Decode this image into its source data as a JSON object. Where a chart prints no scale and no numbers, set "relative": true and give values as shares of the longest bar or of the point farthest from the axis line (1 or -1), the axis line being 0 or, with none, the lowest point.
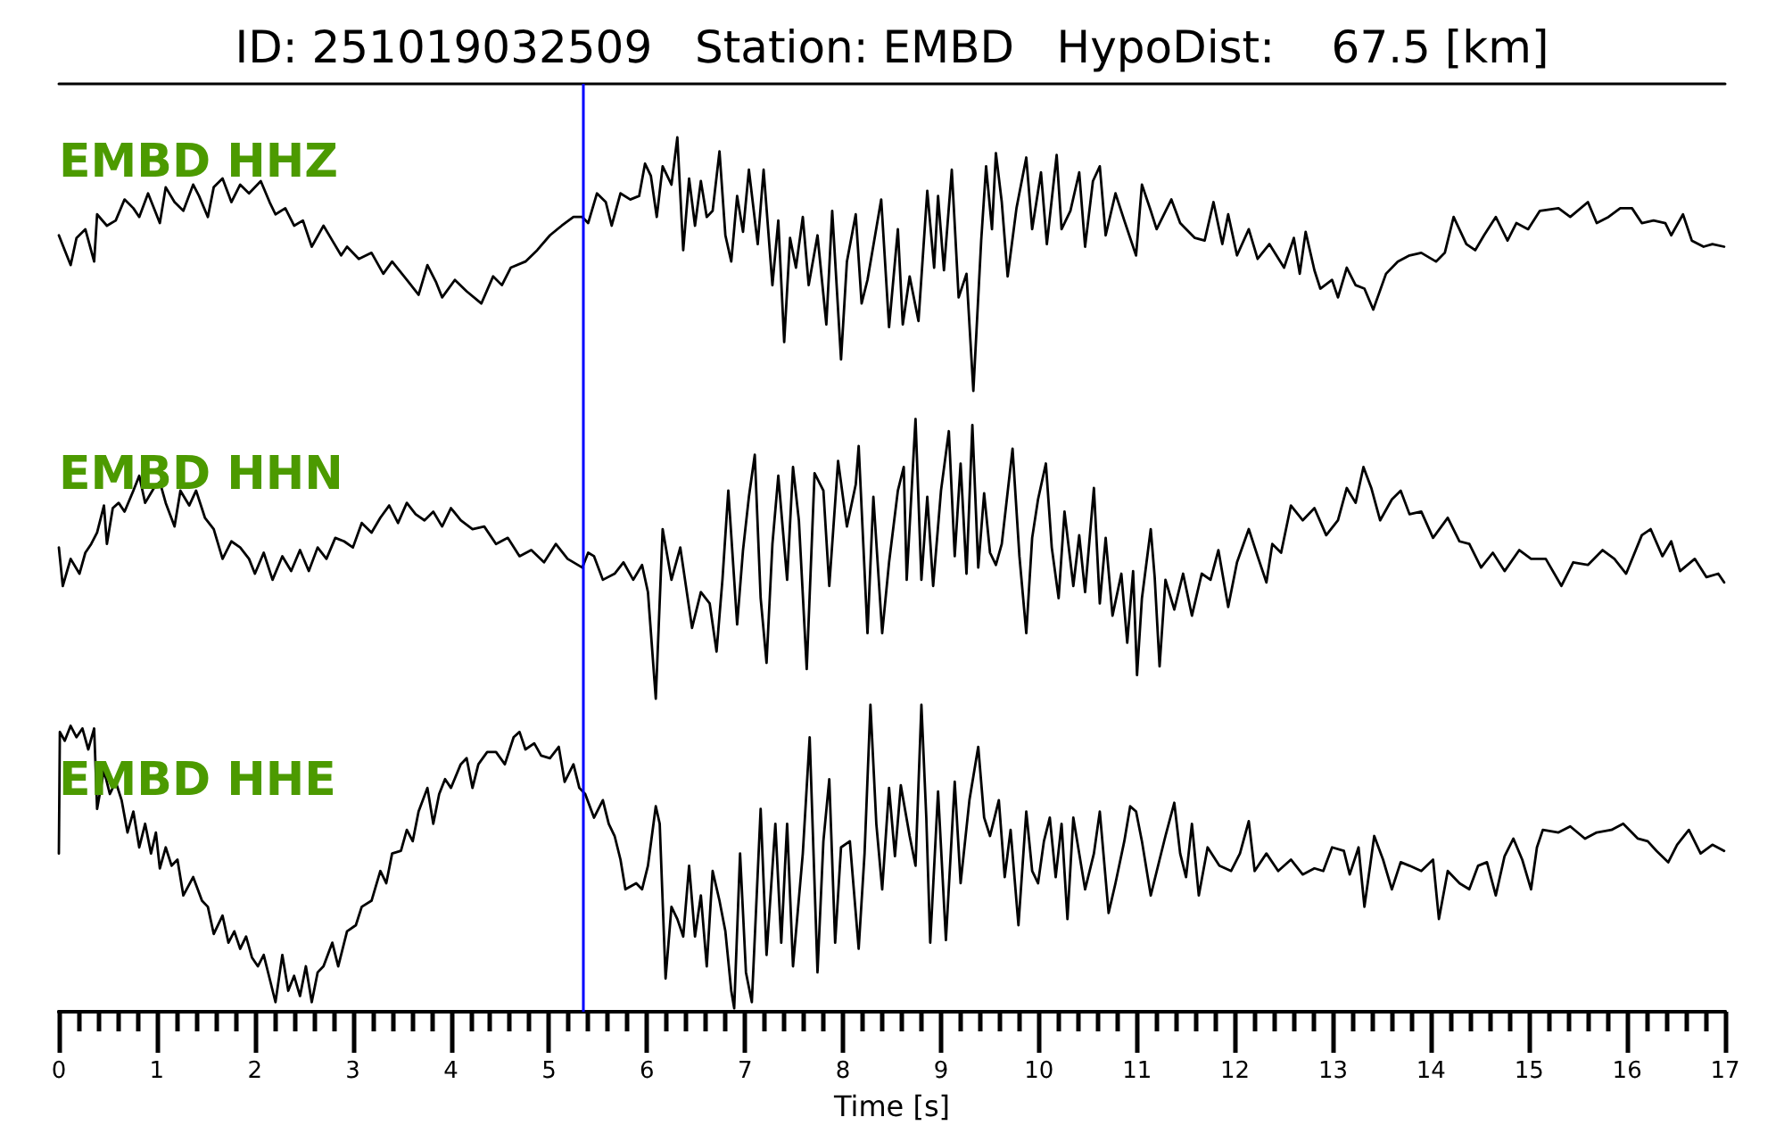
{
  "chart_data": {
    "type": "line",
    "title": "ID: 251019032509   Station: EMBD   HypoDist:    67.5 [km]",
    "xlabel": "Time [s]",
    "relative": true,
    "xlim": [
      0,
      17
    ],
    "xticks": [
      0,
      {
        "value": 0.2,
        "label": null
      },
      {
        "value": 0.4,
        "label": null
      },
      {
        "value": 0.6,
        "label": null
      },
      {
        "value": 0.8,
        "label": null
      },
      1,
      {
        "value": 1.2,
        "label": null
      },
      {
        "value": 1.4,
        "label": null
      },
      {
        "value": 1.6,
        "label": null
      },
      {
        "value": 1.8,
        "label": null
      },
      2,
      {
        "value": 2.2,
        "label": null
      },
      {
        "value": 2.4,
        "label": null
      },
      {
        "value": 2.6,
        "label": null
      },
      {
        "value": 2.8,
        "label": null
      },
      3,
      {
        "value": 3.2,
        "label": null
      },
      {
        "value": 3.4,
        "label": null
      },
      {
        "value": 3.6,
        "label": null
      },
      {
        "value": 3.8,
        "label": null
      },
      4,
      {
        "value": 4.2,
        "label": null
      },
      {
        "value": 4.4,
        "label": null
      },
      {
        "value": 4.6,
        "label": null
      },
      {
        "value": 4.8,
        "label": null
      },
      5,
      {
        "value": 5.2,
        "label": null
      },
      {
        "value": 5.4,
        "label": null
      },
      {
        "value": 5.6,
        "label": null
      },
      {
        "value": 5.8,
        "label": null
      },
      6,
      {
        "value": 6.2,
        "label": null
      },
      {
        "value": 6.4,
        "label": null
      },
      {
        "value": 6.6,
        "label": null
      },
      {
        "value": 6.8,
        "label": null
      },
      7,
      {
        "value": 7.2,
        "label": null
      },
      {
        "value": 7.4,
        "label": null
      },
      {
        "value": 7.6,
        "label": null
      },
      {
        "value": 7.8,
        "label": null
      },
      8,
      {
        "value": 8.2,
        "label": null
      },
      {
        "value": 8.4,
        "label": null
      },
      {
        "value": 8.6,
        "label": null
      },
      {
        "value": 8.8,
        "label": null
      },
      9,
      {
        "value": 9.2,
        "label": null
      },
      {
        "value": 9.4,
        "label": null
      },
      {
        "value": 9.6,
        "label": null
      },
      {
        "value": 9.8,
        "label": null
      },
      10,
      {
        "value": 10.2,
        "label": null
      },
      {
        "value": 10.4,
        "label": null
      },
      {
        "value": 10.6,
        "label": null
      },
      {
        "value": 10.8,
        "label": null
      },
      11,
      {
        "value": 11.2,
        "label": null
      },
      {
        "value": 11.4,
        "label": null
      },
      {
        "value": 11.6,
        "label": null
      },
      {
        "value": 11.8,
        "label": null
      },
      12,
      {
        "value": 12.2,
        "label": null
      },
      {
        "value": 12.4,
        "label": null
      },
      {
        "value": 12.6,
        "label": null
      },
      {
        "value": 12.8,
        "label": null
      },
      13,
      {
        "value": 13.2,
        "label": null
      },
      {
        "value": 13.4,
        "label": null
      },
      {
        "value": 13.6,
        "label": null
      },
      {
        "value": 13.8,
        "label": null
      },
      14,
      {
        "value": 14.2,
        "label": null
      },
      {
        "value": 14.4,
        "label": null
      },
      {
        "value": 14.6,
        "label": null
      },
      {
        "value": 14.8,
        "label": null
      },
      15,
      {
        "value": 15.2,
        "label": null
      },
      {
        "value": 15.4,
        "label": null
      },
      {
        "value": 15.6,
        "label": null
      },
      {
        "value": 15.8,
        "label": null
      },
      16,
      {
        "value": 16.2,
        "label": null
      },
      {
        "value": 16.4,
        "label": null
      },
      {
        "value": 16.6,
        "label": null
      },
      {
        "value": 16.8,
        "label": null
      },
      17
    ],
    "tick_labels": "x",
    "marker": "none",
    "line_style": "solid",
    "ref_lines": [
      {
        "axis": "x",
        "value": 5.35,
        "color": "#0000ff"
      }
    ],
    "series": [
      {
        "name": "EMBD HHZ",
        "color": "#000000",
        "x": [
          0,
          0.06,
          0.12,
          0.18,
          0.27,
          0.36,
          0.39,
          0.49,
          0.58,
          0.67,
          0.76,
          0.82,
          0.91,
          1.03,
          1.09,
          1.18,
          1.27,
          1.37,
          1.43,
          1.52,
          1.58,
          1.67,
          1.76,
          1.85,
          1.94,
          2.06,
          2.15,
          2.21,
          2.31,
          2.4,
          2.49,
          2.58,
          2.7,
          2.79,
          2.88,
          2.94,
          3.06,
          3.19,
          3.31,
          3.4,
          3.55,
          3.67,
          3.76,
          3.85,
          3.91,
          4.04,
          4.16,
          4.31,
          4.43,
          4.52,
          4.61,
          4.76,
          4.88,
          5.01,
          5.13,
          5.25,
          5.34,
          5.4,
          5.49,
          5.58,
          5.64,
          5.73,
          5.83,
          5.92,
          5.98,
          6.04,
          6.1,
          6.16,
          6.25,
          6.31,
          6.37,
          6.43,
          6.49,
          6.55,
          6.61,
          6.67,
          6.74,
          6.8,
          6.86,
          6.92,
          6.98,
          7.04,
          7.13,
          7.19,
          7.28,
          7.34,
          7.4,
          7.46,
          7.52,
          7.59,
          7.65,
          7.74,
          7.83,
          7.89,
          7.98,
          8.04,
          8.13,
          8.19,
          8.25,
          8.39,
          8.47,
          8.56,
          8.61,
          8.68,
          8.77,
          8.86,
          8.93,
          8.97,
          9.03,
          9.11,
          9.18,
          9.26,
          9.33,
          9.41,
          9.46,
          9.52,
          9.56,
          9.62,
          9.68,
          9.77,
          9.87,
          9.93,
          10.02,
          10.08,
          10.18,
          10.23,
          10.32,
          10.41,
          10.47,
          10.55,
          10.62,
          10.68,
          10.78,
          10.87,
          10.99,
          11.05,
          11.14,
          11.2,
          11.35,
          11.44,
          11.59,
          11.69,
          11.78,
          11.87,
          11.93,
          12.02,
          12.14,
          12.23,
          12.35,
          12.5,
          12.6,
          12.66,
          12.72,
          12.81,
          12.87,
          12.99,
          13.05,
          13.14,
          13.23,
          13.32,
          13.41,
          13.54,
          13.66,
          13.78,
          13.9,
          14.05,
          14.14,
          14.23,
          14.36,
          14.45,
          14.54,
          14.66,
          14.78,
          14.87,
          14.99,
          15.11,
          15.3,
          15.42,
          15.6,
          15.69,
          15.81,
          15.93,
          16.05,
          16.15,
          16.27,
          16.39,
          16.45,
          16.57,
          16.66,
          16.78,
          16.87,
          16.99
        ],
        "values": [
          0.888,
          0.871,
          0.854,
          0.885,
          0.895,
          0.858,
          0.912,
          0.899,
          0.905,
          0.929,
          0.919,
          0.909,
          0.936,
          0.902,
          0.943,
          0.926,
          0.916,
          0.946,
          0.933,
          0.909,
          0.943,
          0.953,
          0.926,
          0.946,
          0.936,
          0.95,
          0.926,
          0.912,
          0.919,
          0.899,
          0.905,
          0.875,
          0.899,
          0.882,
          0.865,
          0.875,
          0.861,
          0.868,
          0.844,
          0.858,
          0.837,
          0.82,
          0.854,
          0.834,
          0.817,
          0.837,
          0.824,
          0.81,
          0.841,
          0.831,
          0.851,
          0.858,
          0.871,
          0.888,
          0.899,
          0.909,
          0.909,
          0.902,
          0.936,
          0.926,
          0.899,
          0.936,
          0.929,
          0.933,
          0.97,
          0.956,
          0.909,
          0.967,
          0.946,
          1.0,
          0.871,
          0.953,
          0.899,
          0.95,
          0.909,
          0.916,
          0.984,
          0.888,
          0.858,
          0.933,
          0.892,
          0.963,
          0.878,
          0.963,
          0.831,
          0.905,
          0.766,
          0.885,
          0.851,
          0.909,
          0.831,
          0.888,
          0.786,
          0.916,
          0.746,
          0.858,
          0.912,
          0.81,
          0.837,
          0.929,
          0.783,
          0.895,
          0.786,
          0.841,
          0.79,
          0.939,
          0.851,
          0.933,
          0.848,
          0.963,
          0.817,
          0.844,
          0.71,
          0.882,
          0.967,
          0.895,
          0.982,
          0.926,
          0.841,
          0.919,
          0.977,
          0.895,
          0.96,
          0.878,
          0.98,
          0.895,
          0.916,
          0.96,
          0.875,
          0.95,
          0.967,
          0.888,
          0.936,
          0.905,
          0.865,
          0.946,
          0.916,
          0.895,
          0.929,
          0.902,
          0.885,
          0.882,
          0.926,
          0.878,
          0.912,
          0.865,
          0.895,
          0.861,
          0.878,
          0.851,
          0.885,
          0.844,
          0.892,
          0.848,
          0.827,
          0.837,
          0.817,
          0.851,
          0.831,
          0.827,
          0.803,
          0.844,
          0.858,
          0.865,
          0.868,
          0.858,
          0.868,
          0.909,
          0.878,
          0.871,
          0.888,
          0.909,
          0.882,
          0.902,
          0.895,
          0.916,
          0.919,
          0.909,
          0.926,
          0.902,
          0.909,
          0.919,
          0.919,
          0.902,
          0.905,
          0.902,
          0.888,
          0.912,
          0.882,
          0.875,
          0.878,
          0.875
        ]
      },
      {
        "name": "EMBD HHN",
        "color": "#000000",
        "x": [
          0,
          0.04,
          0.12,
          0.21,
          0.27,
          0.33,
          0.39,
          0.46,
          0.49,
          0.55,
          0.61,
          0.67,
          0.76,
          0.82,
          0.88,
          0.97,
          1.03,
          1.09,
          1.18,
          1.24,
          1.33,
          1.4,
          1.49,
          1.58,
          1.67,
          1.76,
          1.85,
          1.94,
          2.0,
          2.09,
          2.18,
          2.28,
          2.37,
          2.46,
          2.55,
          2.64,
          2.73,
          2.82,
          2.91,
          3.0,
          3.09,
          3.19,
          3.28,
          3.37,
          3.46,
          3.55,
          3.64,
          3.73,
          3.82,
          3.91,
          4.0,
          4.1,
          4.22,
          4.34,
          4.46,
          4.58,
          4.7,
          4.82,
          4.95,
          5.07,
          5.19,
          5.34,
          5.4,
          5.46,
          5.55,
          5.67,
          5.76,
          5.86,
          5.95,
          6.01,
          6.09,
          6.16,
          6.25,
          6.34,
          6.46,
          6.55,
          6.64,
          6.71,
          6.77,
          6.83,
          6.92,
          6.98,
          7.04,
          7.1,
          7.16,
          7.22,
          7.28,
          7.34,
          7.43,
          7.49,
          7.55,
          7.63,
          7.71,
          7.8,
          7.86,
          7.95,
          8.04,
          8.13,
          8.16,
          8.25,
          8.31,
          8.4,
          8.47,
          8.56,
          8.62,
          8.65,
          8.74,
          8.8,
          8.86,
          8.92,
          9.0,
          9.08,
          9.14,
          9.2,
          9.26,
          9.32,
          9.38,
          9.44,
          9.5,
          9.56,
          9.62,
          9.73,
          9.8,
          9.87,
          9.93,
          9.99,
          10.07,
          10.13,
          10.2,
          10.26,
          10.35,
          10.41,
          10.47,
          10.56,
          10.62,
          10.68,
          10.75,
          10.84,
          10.9,
          10.96,
          11.0,
          11.05,
          11.14,
          11.18,
          11.23,
          11.29,
          11.38,
          11.47,
          11.56,
          11.66,
          11.75,
          11.83,
          11.93,
          12.02,
          12.14,
          12.23,
          12.32,
          12.38,
          12.47,
          12.57,
          12.69,
          12.81,
          12.93,
          13.05,
          13.14,
          13.23,
          13.31,
          13.39,
          13.48,
          13.6,
          13.69,
          13.78,
          13.9,
          14.02,
          14.17,
          14.29,
          14.39,
          14.51,
          14.63,
          14.75,
          14.9,
          15.02,
          15.17,
          15.33,
          15.45,
          15.6,
          15.75,
          15.87,
          15.99,
          16.15,
          16.24,
          16.36,
          16.45,
          16.54,
          16.69,
          16.81,
          16.93,
          16.99
        ],
        "values": [
          0.531,
          0.487,
          0.518,
          0.501,
          0.525,
          0.535,
          0.548,
          0.579,
          0.535,
          0.576,
          0.582,
          0.572,
          0.596,
          0.613,
          0.582,
          0.599,
          0.606,
          0.582,
          0.555,
          0.596,
          0.579,
          0.596,
          0.565,
          0.552,
          0.518,
          0.538,
          0.531,
          0.518,
          0.501,
          0.525,
          0.494,
          0.521,
          0.504,
          0.528,
          0.504,
          0.531,
          0.518,
          0.542,
          0.538,
          0.531,
          0.559,
          0.548,
          0.565,
          0.579,
          0.559,
          0.582,
          0.569,
          0.562,
          0.572,
          0.555,
          0.576,
          0.562,
          0.552,
          0.555,
          0.535,
          0.542,
          0.521,
          0.528,
          0.514,
          0.535,
          0.518,
          0.508,
          0.525,
          0.521,
          0.494,
          0.501,
          0.514,
          0.494,
          0.511,
          0.48,
          0.358,
          0.552,
          0.494,
          0.531,
          0.439,
          0.48,
          0.467,
          0.412,
          0.494,
          0.596,
          0.443,
          0.528,
          0.589,
          0.637,
          0.473,
          0.399,
          0.535,
          0.613,
          0.494,
          0.623,
          0.562,
          0.392,
          0.616,
          0.596,
          0.487,
          0.63,
          0.555,
          0.603,
          0.647,
          0.433,
          0.589,
          0.433,
          0.514,
          0.596,
          0.623,
          0.494,
          0.678,
          0.494,
          0.589,
          0.487,
          0.596,
          0.664,
          0.521,
          0.627,
          0.501,
          0.671,
          0.508,
          0.593,
          0.525,
          0.511,
          0.535,
          0.644,
          0.521,
          0.433,
          0.542,
          0.586,
          0.627,
          0.531,
          0.473,
          0.572,
          0.487,
          0.545,
          0.48,
          0.599,
          0.467,
          0.542,
          0.453,
          0.501,
          0.422,
          0.504,
          0.385,
          0.473,
          0.552,
          0.497,
          0.395,
          0.494,
          0.46,
          0.501,
          0.453,
          0.501,
          0.494,
          0.528,
          0.463,
          0.514,
          0.552,
          0.521,
          0.491,
          0.535,
          0.525,
          0.579,
          0.562,
          0.576,
          0.545,
          0.562,
          0.599,
          0.582,
          0.623,
          0.599,
          0.562,
          0.586,
          0.596,
          0.569,
          0.572,
          0.542,
          0.565,
          0.538,
          0.535,
          0.508,
          0.525,
          0.504,
          0.528,
          0.518,
          0.518,
          0.487,
          0.514,
          0.511,
          0.528,
          0.518,
          0.501,
          0.545,
          0.552,
          0.521,
          0.538,
          0.504,
          0.518,
          0.497,
          0.501,
          0.491
        ]
      },
      {
        "name": "EMBD HHE",
        "color": "#000000",
        "x": [
          0,
          0.01,
          0.06,
          0.12,
          0.18,
          0.24,
          0.3,
          0.36,
          0.39,
          0.46,
          0.52,
          0.58,
          0.64,
          0.7,
          0.76,
          0.82,
          0.88,
          0.94,
          0.99,
          1.03,
          1.09,
          1.15,
          1.21,
          1.27,
          1.37,
          1.46,
          1.52,
          1.58,
          1.67,
          1.73,
          1.79,
          1.85,
          1.91,
          1.97,
          2.03,
          2.09,
          2.15,
          2.21,
          2.28,
          2.34,
          2.4,
          2.46,
          2.52,
          2.58,
          2.64,
          2.7,
          2.79,
          2.85,
          2.94,
          3.03,
          3.09,
          3.19,
          3.28,
          3.34,
          3.4,
          3.49,
          3.55,
          3.61,
          3.67,
          3.76,
          3.82,
          3.88,
          3.94,
          4.0,
          4.1,
          4.16,
          4.22,
          4.28,
          4.37,
          4.46,
          4.55,
          4.64,
          4.7,
          4.76,
          4.85,
          4.92,
          5.01,
          5.1,
          5.16,
          5.25,
          5.31,
          5.37,
          5.46,
          5.55,
          5.61,
          5.67,
          5.73,
          5.78,
          5.89,
          5.95,
          6.01,
          6.09,
          6.13,
          6.19,
          6.25,
          6.31,
          6.37,
          6.43,
          6.49,
          6.55,
          6.61,
          6.67,
          6.74,
          6.8,
          6.86,
          6.89,
          6.95,
          7.01,
          7.07,
          7.16,
          7.22,
          7.31,
          7.37,
          7.43,
          7.49,
          7.59,
          7.66,
          7.74,
          7.8,
          7.86,
          7.92,
          7.98,
          8.07,
          8.16,
          8.22,
          8.28,
          8.34,
          8.4,
          8.47,
          8.53,
          8.59,
          8.68,
          8.74,
          8.8,
          8.85,
          8.89,
          8.97,
          9.05,
          9.14,
          9.2,
          9.29,
          9.38,
          9.44,
          9.5,
          9.59,
          9.65,
          9.71,
          9.79,
          9.87,
          9.93,
          9.99,
          10.05,
          10.11,
          10.17,
          10.23,
          10.29,
          10.35,
          10.41,
          10.47,
          10.56,
          10.62,
          10.71,
          10.78,
          10.87,
          10.93,
          10.99,
          11.05,
          11.14,
          11.23,
          11.29,
          11.38,
          11.44,
          11.5,
          11.56,
          11.63,
          11.72,
          11.84,
          11.96,
          12.05,
          12.14,
          12.2,
          12.32,
          12.44,
          12.57,
          12.69,
          12.81,
          12.9,
          12.99,
          13.11,
          13.17,
          13.26,
          13.32,
          13.42,
          13.51,
          13.6,
          13.69,
          13.78,
          13.9,
          14.02,
          14.08,
          14.17,
          14.29,
          14.39,
          14.48,
          14.57,
          14.66,
          14.75,
          14.84,
          14.93,
          15.02,
          15.08,
          15.14,
          15.3,
          15.42,
          15.57,
          15.69,
          15.84,
          15.96,
          16.11,
          16.21,
          16.3,
          16.42,
          16.51,
          16.63,
          16.75,
          16.87,
          16.99
        ],
        "values": [
          0.181,
          0.32,
          0.31,
          0.327,
          0.314,
          0.324,
          0.3,
          0.324,
          0.232,
          0.276,
          0.249,
          0.263,
          0.242,
          0.205,
          0.229,
          0.188,
          0.215,
          0.181,
          0.205,
          0.164,
          0.188,
          0.167,
          0.174,
          0.133,
          0.154,
          0.127,
          0.12,
          0.089,
          0.11,
          0.079,
          0.092,
          0.072,
          0.086,
          0.062,
          0.052,
          0.065,
          0.038,
          0.011,
          0.065,
          0.024,
          0.041,
          0.018,
          0.052,
          0.011,
          0.045,
          0.052,
          0.079,
          0.052,
          0.092,
          0.099,
          0.12,
          0.127,
          0.161,
          0.147,
          0.181,
          0.184,
          0.208,
          0.195,
          0.229,
          0.256,
          0.215,
          0.249,
          0.266,
          0.256,
          0.283,
          0.29,
          0.256,
          0.283,
          0.297,
          0.297,
          0.283,
          0.314,
          0.32,
          0.3,
          0.307,
          0.293,
          0.29,
          0.303,
          0.263,
          0.283,
          0.256,
          0.249,
          0.222,
          0.242,
          0.215,
          0.201,
          0.174,
          0.14,
          0.147,
          0.14,
          0.167,
          0.235,
          0.215,
          0.038,
          0.12,
          0.106,
          0.086,
          0.167,
          0.086,
          0.133,
          0.052,
          0.161,
          0.127,
          0.092,
          0.024,
          0.004,
          0.181,
          0.045,
          0.011,
          0.232,
          0.065,
          0.215,
          0.079,
          0.215,
          0.052,
          0.181,
          0.314,
          0.045,
          0.195,
          0.266,
          0.079,
          0.188,
          0.195,
          0.072,
          0.181,
          0.351,
          0.215,
          0.14,
          0.256,
          0.178,
          0.259,
          0.201,
          0.167,
          0.351,
          0.222,
          0.079,
          0.252,
          0.082,
          0.263,
          0.147,
          0.242,
          0.303,
          0.222,
          0.201,
          0.242,
          0.154,
          0.208,
          0.099,
          0.229,
          0.161,
          0.147,
          0.195,
          0.222,
          0.154,
          0.215,
          0.106,
          0.222,
          0.181,
          0.14,
          0.181,
          0.229,
          0.113,
          0.147,
          0.195,
          0.235,
          0.229,
          0.195,
          0.133,
          0.174,
          0.201,
          0.239,
          0.181,
          0.154,
          0.215,
          0.133,
          0.188,
          0.167,
          0.161,
          0.181,
          0.218,
          0.161,
          0.181,
          0.161,
          0.174,
          0.157,
          0.164,
          0.161,
          0.188,
          0.184,
          0.157,
          0.188,
          0.12,
          0.201,
          0.174,
          0.14,
          0.171,
          0.167,
          0.161,
          0.174,
          0.106,
          0.161,
          0.147,
          0.14,
          0.167,
          0.171,
          0.133,
          0.178,
          0.198,
          0.174,
          0.14,
          0.188,
          0.208,
          0.205,
          0.212,
          0.198,
          0.205,
          0.208,
          0.215,
          0.198,
          0.195,
          0.184,
          0.171,
          0.191,
          0.208,
          0.181,
          0.191,
          0.184
        ]
      }
    ]
  }
}
